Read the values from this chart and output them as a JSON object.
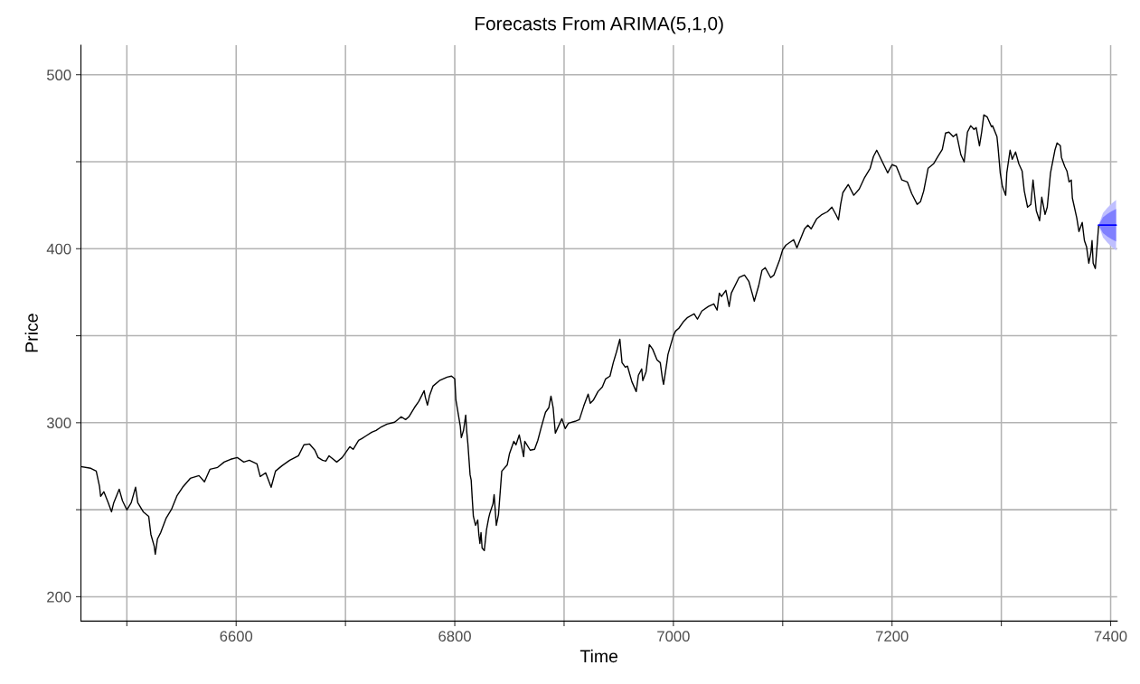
{
  "chart_data": {
    "type": "line",
    "title": "Forecasts From ARIMA(5,1,0)",
    "xlabel": "Time",
    "ylabel": "Price",
    "xlim": [
      6458,
      7406
    ],
    "ylim": [
      186,
      517
    ],
    "xticks": [
      {
        "value": 6500,
        "label": null
      },
      6600,
      {
        "value": 6700,
        "label": null
      },
      6800,
      {
        "value": 6900,
        "label": null
      },
      7000,
      {
        "value": 7100,
        "label": null
      },
      7200,
      {
        "value": 7300,
        "label": null
      },
      7400
    ],
    "yticks": [
      200,
      {
        "value": 250,
        "label": null
      },
      300,
      {
        "value": 350,
        "label": null
      },
      400,
      {
        "value": 450,
        "label": null
      },
      500
    ],
    "grid": true,
    "series": [
      {
        "color": "#000000",
        "x": [
          6458,
          6467,
          6472,
          6475,
          6476,
          6479,
          6483,
          6486,
          6488,
          6493,
          6496,
          6500,
          6504,
          6508,
          6510,
          6515,
          6520,
          6522,
          6525,
          6526,
          6528,
          6531,
          6536,
          6541,
          6546,
          6551,
          6558,
          6566,
          6571,
          6576,
          6583,
          6589,
          6595,
          6601,
          6607,
          6612,
          6619,
          6622,
          6627,
          6632,
          6636,
          6642,
          6649,
          6657,
          6662,
          6667,
          6672,
          6675,
          6679,
          6682,
          6685,
          6692,
          6697,
          6704,
          6707,
          6712,
          6715,
          6719,
          6724,
          6728,
          6733,
          6738,
          6745,
          6751,
          6755,
          6758,
          6763,
          6767,
          6772,
          6773,
          6775,
          6777,
          6780,
          6786,
          6793,
          6797,
          6800,
          6801,
          6805,
          6806,
          6808,
          6810,
          6811,
          6812,
          6814,
          6815,
          6816,
          6817,
          6819,
          6821,
          6822,
          6823,
          6824,
          6825,
          6827,
          6829,
          6831,
          6832,
          6835,
          6836,
          6838,
          6840,
          6843,
          6848,
          6850,
          6854,
          6856,
          6859,
          6863,
          6864,
          6869,
          6873,
          6876,
          6879,
          6883,
          6886,
          6888,
          6890,
          6892,
          6898,
          6901,
          6904,
          6910,
          6914,
          6918,
          6922,
          6924,
          6927,
          6931,
          6935,
          6938,
          6942,
          6945,
          6948,
          6951,
          6953,
          6956,
          6958,
          6962,
          6966,
          6968,
          6971,
          6972,
          6975,
          6978,
          6981,
          6985,
          6988,
          6990,
          6991,
          6994,
          6995,
          7000,
          7002,
          7005,
          7009,
          7013,
          7019,
          7022,
          7026,
          7032,
          7037,
          7040,
          7042,
          7044,
          7048,
          7051,
          7053,
          7060,
          7065,
          7069,
          7072,
          7074,
          7078,
          7081,
          7084,
          7089,
          7092,
          7097,
          7100,
          7103,
          7110,
          7113,
          7120,
          7123,
          7126,
          7131,
          7136,
          7141,
          7145,
          7149,
          7151,
          7153,
          7155,
          7160,
          7165,
          7170,
          7175,
          7180,
          7183,
          7186,
          7192,
          7196,
          7200,
          7204,
          7209,
          7214,
          7218,
          7223,
          7226,
          7229,
          7233,
          7238,
          7242,
          7246,
          7249,
          7252,
          7256,
          7259,
          7263,
          7266,
          7269,
          7272,
          7275,
          7277,
          7280,
          7282,
          7284,
          7287,
          7291,
          7292,
          7296,
          7297,
          7299,
          7301,
          7304,
          7305,
          7308,
          7310,
          7313,
          7316,
          7319,
          7321,
          7324,
          7327,
          7329,
          7332,
          7335,
          7337,
          7340,
          7342,
          7345,
          7349,
          7351,
          7354,
          7355,
          7358,
          7360,
          7362,
          7364,
          7365,
          7369,
          7371,
          7374,
          7376,
          7378,
          7380,
          7382,
          7383,
          7384,
          7386,
          7387,
          7389
        ],
        "values": [
          274.8,
          273.8,
          272.2,
          263.4,
          257.7,
          260.3,
          254,
          248.8,
          254,
          261.8,
          255.1,
          249.9,
          254,
          262.9,
          254,
          248.8,
          246.2,
          235.8,
          229.1,
          224.4,
          233.2,
          236.9,
          245.2,
          250.4,
          258.2,
          262.9,
          268,
          269.6,
          266,
          273.2,
          274.3,
          277.4,
          279,
          280,
          277.4,
          278.4,
          276.4,
          269.1,
          271.2,
          262.9,
          272.2,
          275.3,
          278.4,
          281,
          287.3,
          287.8,
          284.2,
          280,
          278.4,
          277.9,
          281,
          277.4,
          280,
          286.2,
          284.7,
          289.9,
          290.9,
          292.5,
          294.5,
          295.6,
          297.7,
          299.2,
          300.3,
          303.4,
          301.8,
          303.4,
          308.6,
          312.2,
          318.4,
          314.8,
          310.1,
          315.8,
          321,
          324.2,
          326.2,
          326.8,
          325.2,
          313.2,
          298.2,
          291.4,
          295.6,
          304.4,
          294.5,
          287.8,
          270.1,
          267,
          256.1,
          246.2,
          241,
          244.1,
          235.8,
          230.6,
          236.9,
          228,
          226.5,
          238.4,
          245.2,
          247.8,
          253.5,
          258.7,
          241,
          247.3,
          272.2,
          275.8,
          282.1,
          289.3,
          287.3,
          293,
          280.5,
          289.3,
          284.2,
          284.7,
          289.9,
          297.1,
          306,
          308.6,
          315.3,
          308.6,
          294,
          302.3,
          296.6,
          299.7,
          300.8,
          301.8,
          309.6,
          316.4,
          311.2,
          313.2,
          317.9,
          320.5,
          325.2,
          326.8,
          334.5,
          340.8,
          348,
          334.5,
          331.9,
          332.5,
          323.6,
          317.9,
          327.3,
          330.9,
          324.2,
          329.3,
          344.9,
          342.3,
          336.1,
          334.5,
          325.2,
          322.1,
          334.5,
          339.2,
          350.1,
          352.7,
          354.3,
          357.9,
          360.5,
          362.6,
          359.5,
          364.2,
          366.8,
          368.3,
          364.7,
          374.5,
          372.5,
          376.1,
          366.8,
          374.5,
          383.4,
          384.9,
          381.3,
          374.5,
          369.9,
          378.7,
          387.5,
          389.1,
          383.4,
          384.9,
          393.2,
          399.5,
          402.1,
          405.2,
          400.5,
          411.4,
          413.5,
          411.4,
          417.1,
          419.7,
          421.3,
          423.9,
          419.2,
          416.6,
          425.5,
          432.2,
          436.9,
          430.7,
          434.3,
          441,
          446.2,
          453,
          456.6,
          448.8,
          443.6,
          448.3,
          447.3,
          439.5,
          438.4,
          431.7,
          425.5,
          427,
          433.2,
          446.2,
          448.8,
          453,
          457.1,
          466.5,
          467,
          464.4,
          466,
          454,
          449.9,
          467,
          470.7,
          468.6,
          469.6,
          459.2,
          467,
          476.9,
          475.8,
          470.1,
          470.7,
          464.4,
          458.2,
          443.6,
          435.8,
          430.7,
          443.6,
          456.6,
          451.4,
          455.6,
          448.8,
          444.7,
          433.2,
          423.9,
          425.5,
          439.5,
          421.8,
          416.1,
          429.6,
          419.7,
          423.9,
          443.6,
          456.6,
          460.8,
          459.2,
          452.5,
          447.3,
          444.7,
          438.4,
          439.5,
          429.1,
          417.7,
          409.9,
          415.1,
          404.7,
          401,
          391.7,
          398,
          404.7,
          391.7,
          388.6,
          396.9,
          413
        ]
      },
      {
        "color": "#0000ff",
        "x": [
          7389,
          7393,
          7397,
          7401,
          7405
        ],
        "values": [
          413.5,
          413.5,
          413.5,
          413.5,
          413.5
        ],
        "lower": [
          413.5,
          406.5,
          403.5,
          401,
          399
        ],
        "upper": [
          413.5,
          420.5,
          423.5,
          426,
          428
        ]
      },
      {
        "color": "#0000ff",
        "x": [
          7389,
          7393,
          7397,
          7401,
          7405
        ],
        "values": [
          413.5,
          413.5,
          413.5,
          413.5,
          413.5
        ],
        "lower": [
          413.5,
          409,
          407,
          405.5,
          404.2
        ],
        "upper": [
          413.5,
          418,
          420,
          421.5,
          422.8
        ]
      }
    ]
  }
}
